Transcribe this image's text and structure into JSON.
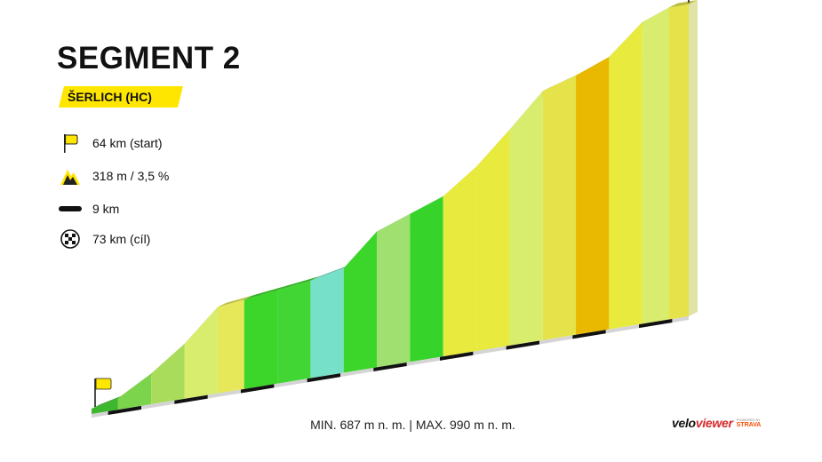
{
  "header": {
    "title": "SEGMENT 2",
    "climb_tag": "ŠERLICH (HC)"
  },
  "stats": {
    "start": "64 km (start)",
    "climb": "318 m / 3,5 %",
    "length": "9 km",
    "finish": "73 km (cíl)"
  },
  "footer": {
    "elevation_range": "MIN. 687 m n. m. | MAX. 990 m n. m."
  },
  "brand": {
    "name_prefix": "velo",
    "name_suffix": "viewer",
    "powered_by": "POWERED BY",
    "partner": "STRAVA"
  },
  "colors": {
    "tag_yellow": "#ffe600",
    "flag_yellow": "#ffe600"
  },
  "icons": [
    "start-flag-icon",
    "mountain-icon",
    "distance-bar-icon",
    "finish-flag-icon"
  ],
  "chart_data": {
    "type": "area",
    "x_unit": "km",
    "y_unit": "m n. m.",
    "x_start": 64,
    "x_end": 73,
    "ylim": [
      687,
      990
    ],
    "elevation_profile": [
      {
        "km": 64.0,
        "ele": 687
      },
      {
        "km": 64.4,
        "ele": 693
      },
      {
        "km": 64.9,
        "ele": 712
      },
      {
        "km": 65.4,
        "ele": 736
      },
      {
        "km": 65.9,
        "ele": 767
      },
      {
        "km": 66.3,
        "ele": 770
      },
      {
        "km": 66.8,
        "ele": 774
      },
      {
        "km": 67.3,
        "ele": 778
      },
      {
        "km": 67.8,
        "ele": 785
      },
      {
        "km": 68.3,
        "ele": 816
      },
      {
        "km": 68.8,
        "ele": 828
      },
      {
        "km": 69.3,
        "ele": 840
      },
      {
        "km": 69.8,
        "ele": 864
      },
      {
        "km": 70.3,
        "ele": 895
      },
      {
        "km": 70.8,
        "ele": 928
      },
      {
        "km": 71.3,
        "ele": 938
      },
      {
        "km": 71.8,
        "ele": 951
      },
      {
        "km": 72.3,
        "ele": 980
      },
      {
        "km": 72.7,
        "ele": 990
      },
      {
        "km": 73.0,
        "ele": 990
      }
    ],
    "gradient_colors": [
      "#3db82e",
      "#7bd44b",
      "#a9dc5a",
      "#d8ec6e",
      "#e6e85a",
      "#3cd62a",
      "#42d634",
      "#76e0c8",
      "#3cd62a",
      "#9fe070",
      "#36d42a",
      "#e8ea3e",
      "#e8ea3e",
      "#d8ec6e",
      "#e6e34a",
      "#e9b800",
      "#e8ea3e",
      "#d8ec6e",
      "#e6e34a",
      "#8ee07a"
    ]
  }
}
